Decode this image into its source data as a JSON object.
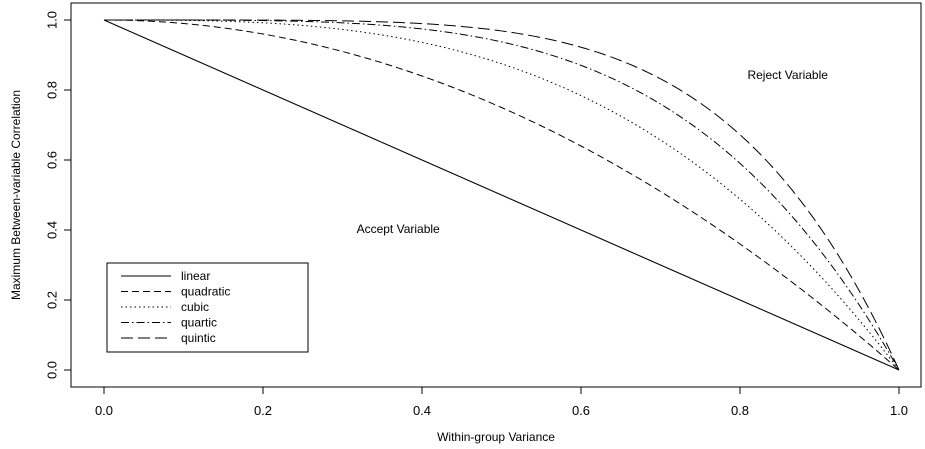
{
  "chart_data": {
    "type": "line",
    "title": "",
    "xlabel": "Within-group Variance",
    "ylabel": "Maximum Between-variable Correlation",
    "xlim": [
      0,
      1
    ],
    "ylim": [
      0,
      1
    ],
    "x_ticks": [
      "0.0",
      "0.2",
      "0.4",
      "0.6",
      "0.8",
      "1.0"
    ],
    "y_ticks": [
      "0.0",
      "0.2",
      "0.4",
      "0.6",
      "0.8",
      "1.0"
    ],
    "grid": false,
    "legend_position": "bottom-left",
    "x": [
      0.0,
      0.1,
      0.2,
      0.3,
      0.4,
      0.5,
      0.6,
      0.7,
      0.8,
      0.9,
      1.0
    ],
    "series": [
      {
        "name": "linear",
        "dash": "",
        "values": [
          1.0,
          0.9,
          0.8,
          0.7,
          0.6,
          0.5,
          0.4,
          0.3,
          0.2,
          0.1,
          0.0
        ]
      },
      {
        "name": "quadratic",
        "dash": "7,4",
        "values": [
          1.0,
          0.99,
          0.96,
          0.91,
          0.84,
          0.75,
          0.64,
          0.51,
          0.36,
          0.19,
          0.0
        ]
      },
      {
        "name": "cubic",
        "dash": "1.5,3",
        "values": [
          1.0,
          0.999,
          0.992,
          0.973,
          0.936,
          0.875,
          0.784,
          0.657,
          0.488,
          0.271,
          0.0
        ]
      },
      {
        "name": "quartic",
        "dash": "8,3,1.5,3",
        "values": [
          1.0,
          1.0,
          0.998,
          0.992,
          0.974,
          0.938,
          0.87,
          0.76,
          0.59,
          0.344,
          0.0
        ]
      },
      {
        "name": "quintic",
        "dash": "12,5",
        "values": [
          1.0,
          1.0,
          1.0,
          0.998,
          0.99,
          0.969,
          0.922,
          0.832,
          0.672,
          0.41,
          0.0
        ]
      }
    ],
    "annotations": [
      {
        "text": "Reject Variable",
        "x": 0.86,
        "y": 0.84
      },
      {
        "text": "Accept Variable",
        "x": 0.37,
        "y": 0.4
      }
    ]
  }
}
